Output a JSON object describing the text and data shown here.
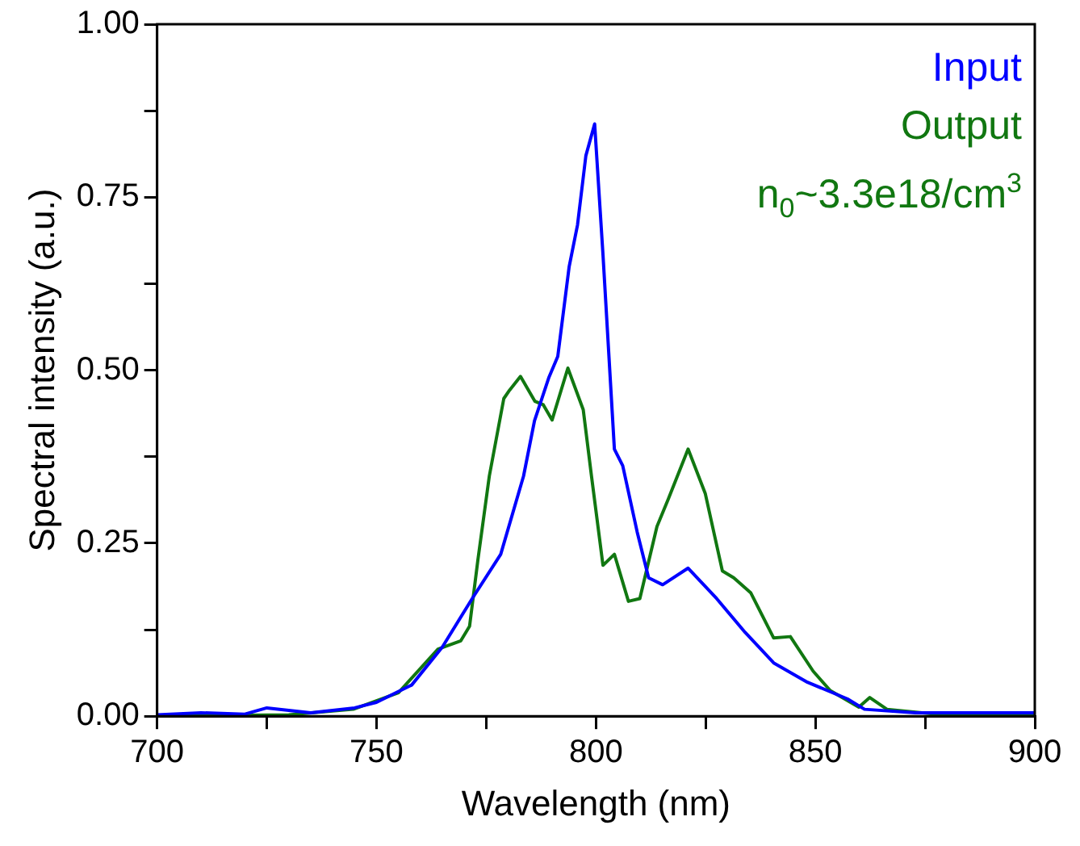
{
  "chart_data": {
    "type": "line",
    "xlabel": "Wavelength (nm)",
    "ylabel": "Spectral intensity (a.u.)",
    "xlim": [
      700,
      900
    ],
    "ylim": [
      0,
      1
    ],
    "xticks": [
      700,
      {
        "value": 725,
        "label": null
      },
      750,
      {
        "value": 775,
        "label": null
      },
      800,
      {
        "value": 825,
        "label": null
      },
      850,
      {
        "value": 875,
        "label": null
      },
      900
    ],
    "yticks": [
      {
        "value": 0,
        "label": "0.00"
      },
      {
        "value": 0.125,
        "label": null
      },
      {
        "value": 0.25,
        "label": "0.25"
      },
      {
        "value": 0.375,
        "label": null
      },
      {
        "value": 0.5,
        "label": "0.50"
      },
      {
        "value": 0.625,
        "label": null
      },
      {
        "value": 0.75,
        "label": "0.75"
      },
      {
        "value": 0.875,
        "label": null
      },
      {
        "value": 1,
        "label": "1.00"
      }
    ],
    "grid": false,
    "legend": "top right",
    "marker": "none",
    "line_style": "solid",
    "annotations": [
      "n$_{0}$~3.3e18/cm$^{3}$"
    ],
    "series": [
      {
        "name": "Input",
        "color": "#0000ff",
        "x": [
          700,
          710,
          720,
          725,
          735,
          745,
          750,
          758,
          765,
          771.8,
          778.3,
          783.5,
          786,
          789.3,
          791.3,
          793.9,
          795.8,
          797.7,
          799.7,
          801.6,
          804.2,
          806.1,
          809.4,
          812,
          815.2,
          821,
          827.5,
          834,
          840.5,
          848.2,
          857.3,
          861.2,
          872.8,
          900
        ],
        "values": [
          0.002,
          0.005,
          0.003,
          0.012,
          0.005,
          0.012,
          0.02,
          0.045,
          0.1,
          0.17,
          0.234,
          0.347,
          0.427,
          0.49,
          0.52,
          0.65,
          0.71,
          0.81,
          0.856,
          0.667,
          0.386,
          0.362,
          0.266,
          0.2,
          0.19,
          0.214,
          0.17,
          0.121,
          0.077,
          0.049,
          0.025,
          0.01,
          0.005,
          0.005
        ]
      },
      {
        "name": "Output",
        "color": "#117711",
        "x": [
          700,
          730,
          744.7,
          755,
          764,
          769.2,
          771.2,
          773.1,
          775.7,
          779,
          780.3,
          782.8,
          786.1,
          788,
          790,
          793.6,
          797.1,
          799,
          801.6,
          804.2,
          807.4,
          810,
          813.9,
          816.5,
          821,
          824.9,
          828.8,
          831.4,
          835.3,
          840.5,
          844.3,
          849.5,
          853.4,
          859.9,
          862.4,
          866.3,
          879,
          900
        ],
        "values": [
          0,
          0.002,
          0.01,
          0.034,
          0.097,
          0.109,
          0.13,
          0.226,
          0.347,
          0.459,
          0.471,
          0.491,
          0.455,
          0.45,
          0.428,
          0.503,
          0.443,
          0.346,
          0.218,
          0.234,
          0.166,
          0.17,
          0.274,
          0.314,
          0.386,
          0.322,
          0.21,
          0.2,
          0.178,
          0.113,
          0.115,
          0.065,
          0.037,
          0.013,
          0.027,
          0.01,
          0.002,
          0.002
        ]
      }
    ]
  }
}
